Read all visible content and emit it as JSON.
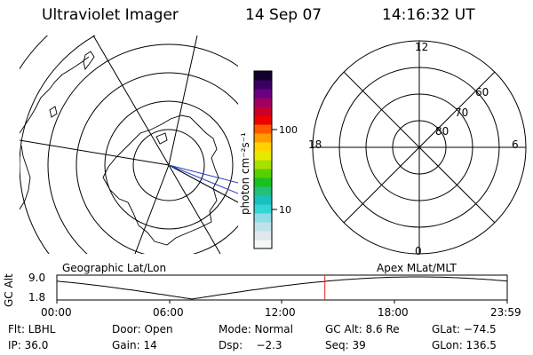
{
  "header": {
    "instrument": "Ultraviolet Imager",
    "date": "14 Sep 07",
    "time": "14:16:32 UT"
  },
  "left_map": {
    "caption": "Geographic Lat/Lon"
  },
  "colorbar": {
    "unit_label": "photon cm⁻²s⁻¹",
    "tick_100": "100",
    "tick_10": "10",
    "colors": [
      "#f4f6f8",
      "#dfe8ee",
      "#bfe2ea",
      "#8fdce6",
      "#33d6d6",
      "#19c0c0",
      "#24c078",
      "#19c020",
      "#58d000",
      "#a8e000",
      "#e6ea00",
      "#ffd200",
      "#ff9c00",
      "#ff5a00",
      "#ef0000",
      "#c8002a",
      "#a00064",
      "#6a0080",
      "#380060",
      "#14002c"
    ]
  },
  "right_map": {
    "caption": "Apex MLat/MLT",
    "mlt_top": "12",
    "mlt_left": "18",
    "mlt_right": "6",
    "mlt_bottom": "0",
    "lat_60": "60",
    "lat_70": "70",
    "lat_80": "80"
  },
  "altitude_panel": {
    "axis_label": "GC Alt",
    "y_top": "9.0",
    "y_bottom": "1.8",
    "x_ticks": [
      "00:00",
      "06:00",
      "12:00",
      "18:00",
      "23:59"
    ],
    "current_marker_hour": 14.28
  },
  "info": {
    "filter": "Flt: LBHL",
    "door": "Door: Open",
    "mode": "Mode: Normal",
    "gc_alt": "GC Alt: 8.6 Re",
    "glat": "GLat: −74.5",
    "ip": "IP: 36.0",
    "gain": "Gain: 14",
    "dsp": "Dsp:    −2.3",
    "seq": "Seq: 39",
    "glon": "GLon: 136.5"
  }
}
